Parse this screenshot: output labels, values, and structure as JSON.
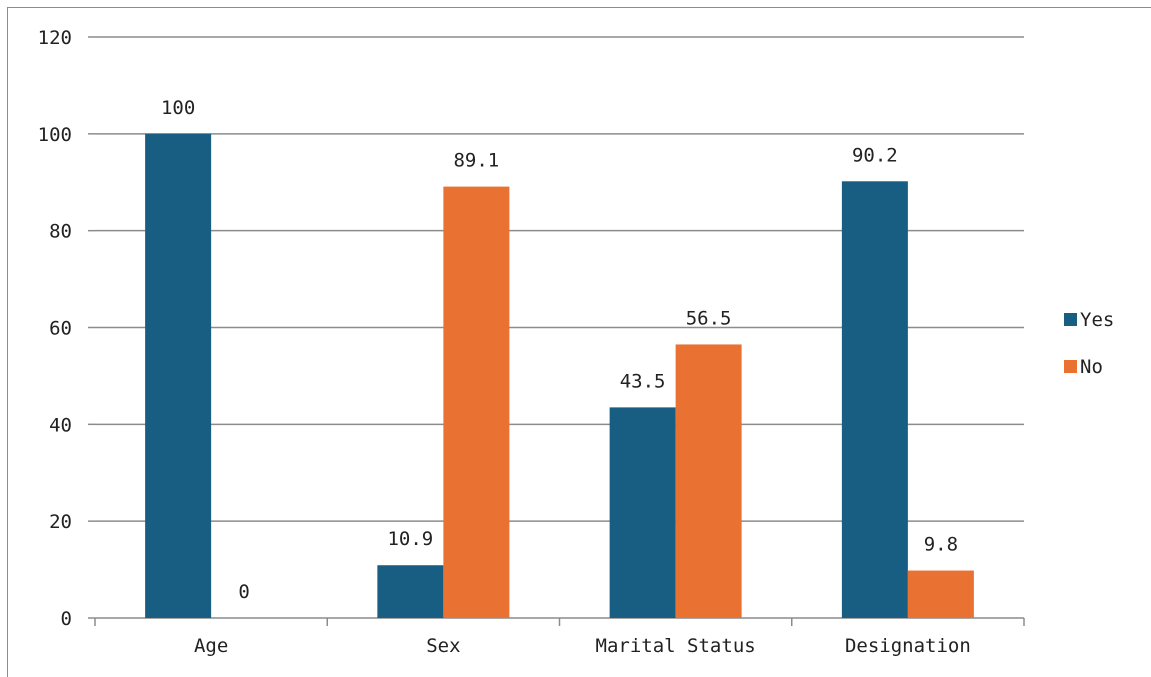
{
  "chart_data": {
    "type": "bar",
    "title": "",
    "xlabel": "",
    "ylabel": "",
    "categories": [
      "Age",
      "Sex",
      "Marital Status",
      "Designation"
    ],
    "series": [
      {
        "name": "Yes",
        "values": [
          100,
          10.9,
          43.5,
          90.2
        ],
        "color": "#175e82"
      },
      {
        "name": "No",
        "values": [
          0,
          89.1,
          56.5,
          9.8
        ],
        "color": "#e97132"
      }
    ],
    "ylim": [
      0,
      120
    ],
    "yticks": [
      0,
      20,
      40,
      60,
      80,
      100,
      120
    ],
    "grid": true,
    "legend_position": "right",
    "data_labels": true
  }
}
